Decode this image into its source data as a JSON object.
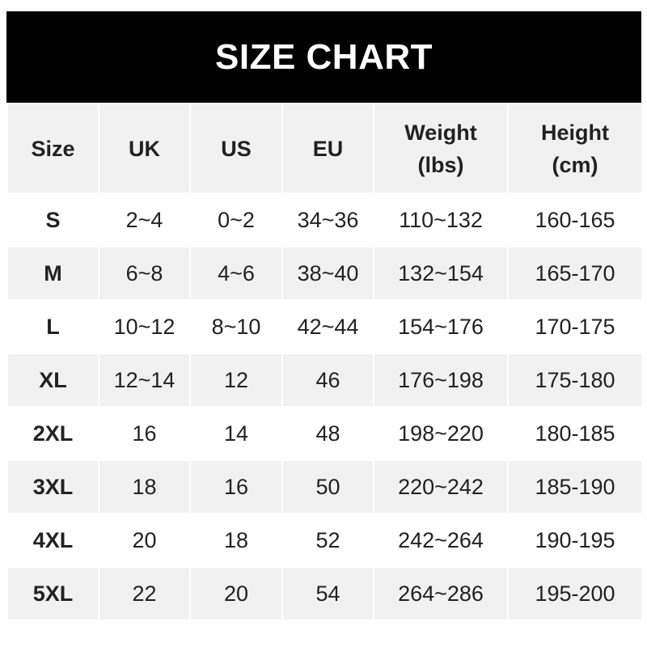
{
  "title": "SIZE CHART",
  "headers": [
    [
      "Size"
    ],
    [
      "UK"
    ],
    [
      "US"
    ],
    [
      "EU"
    ],
    [
      "Weight",
      "(lbs)"
    ],
    [
      "Height",
      "(cm)"
    ]
  ],
  "rows": [
    [
      "S",
      "2~4",
      "0~2",
      "34~36",
      "110~132",
      "160-165"
    ],
    [
      "M",
      "6~8",
      "4~6",
      "38~40",
      "132~154",
      "165-170"
    ],
    [
      "L",
      "10~12",
      "8~10",
      "42~44",
      "154~176",
      "170-175"
    ],
    [
      "XL",
      "12~14",
      "12",
      "46",
      "176~198",
      "175-180"
    ],
    [
      "2XL",
      "16",
      "14",
      "48",
      "198~220",
      "180-185"
    ],
    [
      "3XL",
      "18",
      "16",
      "50",
      "220~242",
      "185-190"
    ],
    [
      "4XL",
      "20",
      "18",
      "52",
      "242~264",
      "190-195"
    ],
    [
      "5XL",
      "22",
      "20",
      "54",
      "264~286",
      "195-200"
    ]
  ],
  "colors": {
    "header_bg": "#000000",
    "title_text": "#ffffff",
    "stripe": "#f1f1f1",
    "text": "#222222"
  }
}
